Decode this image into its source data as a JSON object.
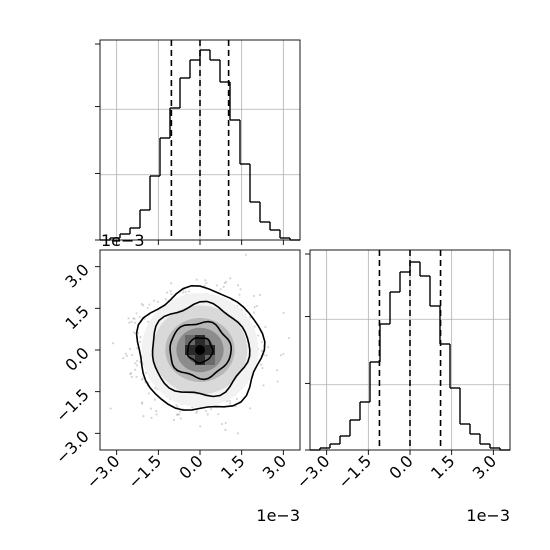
{
  "chart_data": {
    "type": "corner",
    "offset_label": "1e−3",
    "tick_labels": [
      "−3.0",
      "−1.5",
      "0.0",
      "1.5",
      "3.0"
    ],
    "tick_values": [
      -3.0,
      -1.5,
      0.0,
      1.5,
      3.0
    ],
    "axis_range": [
      -3.6,
      3.6
    ],
    "grid": true,
    "panels": [
      {
        "name": "hist-param-1",
        "type": "histogram-step",
        "ylim": [
          0,
          1.0
        ],
        "bins": [
          {
            "x0": -3.6,
            "x1": -3.24,
            "h": 0.0
          },
          {
            "x0": -3.24,
            "x1": -2.88,
            "h": 0.01
          },
          {
            "x0": -2.88,
            "x1": -2.52,
            "h": 0.03
          },
          {
            "x0": -2.52,
            "x1": -2.16,
            "h": 0.06
          },
          {
            "x0": -2.16,
            "x1": -1.8,
            "h": 0.15
          },
          {
            "x0": -1.8,
            "x1": -1.44,
            "h": 0.32
          },
          {
            "x0": -1.44,
            "x1": -1.08,
            "h": 0.51
          },
          {
            "x0": -1.08,
            "x1": -0.72,
            "h": 0.66
          },
          {
            "x0": -0.72,
            "x1": -0.36,
            "h": 0.81
          },
          {
            "x0": -0.36,
            "x1": 0.0,
            "h": 0.9
          },
          {
            "x0": 0.0,
            "x1": 0.36,
            "h": 0.95
          },
          {
            "x0": 0.36,
            "x1": 0.72,
            "h": 0.9
          },
          {
            "x0": 0.72,
            "x1": 1.08,
            "h": 0.79
          },
          {
            "x0": 1.08,
            "x1": 1.44,
            "h": 0.6
          },
          {
            "x0": 1.44,
            "x1": 1.8,
            "h": 0.38
          },
          {
            "x0": 1.8,
            "x1": 2.16,
            "h": 0.19
          },
          {
            "x0": 2.16,
            "x1": 2.52,
            "h": 0.09
          },
          {
            "x0": 2.52,
            "x1": 2.88,
            "h": 0.05
          },
          {
            "x0": 2.88,
            "x1": 3.24,
            "h": 0.01
          },
          {
            "x0": 3.24,
            "x1": 3.6,
            "h": 0.0
          }
        ],
        "quantiles": [
          -1.03,
          0.0,
          1.03
        ]
      },
      {
        "name": "hist-param-2",
        "type": "histogram-step",
        "ylim": [
          0,
          1.0
        ],
        "bins": [
          {
            "x0": -3.6,
            "x1": -3.24,
            "h": 0.0
          },
          {
            "x0": -3.24,
            "x1": -2.88,
            "h": 0.01
          },
          {
            "x0": -2.88,
            "x1": -2.52,
            "h": 0.03
          },
          {
            "x0": -2.52,
            "x1": -2.16,
            "h": 0.07
          },
          {
            "x0": -2.16,
            "x1": -1.8,
            "h": 0.15
          },
          {
            "x0": -1.8,
            "x1": -1.44,
            "h": 0.24
          },
          {
            "x0": -1.44,
            "x1": -1.08,
            "h": 0.44
          },
          {
            "x0": -1.08,
            "x1": -0.72,
            "h": 0.63
          },
          {
            "x0": -0.72,
            "x1": -0.36,
            "h": 0.79
          },
          {
            "x0": -0.36,
            "x1": 0.0,
            "h": 0.89
          },
          {
            "x0": 0.0,
            "x1": 0.36,
            "h": 0.94
          },
          {
            "x0": 0.36,
            "x1": 0.72,
            "h": 0.87
          },
          {
            "x0": 0.72,
            "x1": 1.08,
            "h": 0.72
          },
          {
            "x0": 1.08,
            "x1": 1.44,
            "h": 0.53
          },
          {
            "x0": 1.44,
            "x1": 1.8,
            "h": 0.31
          },
          {
            "x0": 1.8,
            "x1": 2.16,
            "h": 0.13
          },
          {
            "x0": 2.16,
            "x1": 2.52,
            "h": 0.08
          },
          {
            "x0": 2.52,
            "x1": 2.88,
            "h": 0.03
          },
          {
            "x0": 2.88,
            "x1": 3.24,
            "h": 0.01
          },
          {
            "x0": 3.24,
            "x1": 3.6,
            "h": 0.0
          }
        ],
        "quantiles": [
          -1.1,
          0.0,
          1.1
        ]
      },
      {
        "name": "joint-param-1-param-2",
        "type": "2d-density",
        "center": [
          0.0,
          0.0
        ],
        "sigma": [
          1.0,
          1.0
        ],
        "n_points": 1400,
        "contours": [
          {
            "level": "outer",
            "rx": 2.25,
            "ry": 2.2
          },
          {
            "level": "mid",
            "rx": 1.75,
            "ry": 1.65
          },
          {
            "level": "inner",
            "rx": 1.1,
            "ry": 1.0
          },
          {
            "level": "core",
            "rx": 0.45,
            "ry": 0.45
          }
        ]
      }
    ]
  }
}
